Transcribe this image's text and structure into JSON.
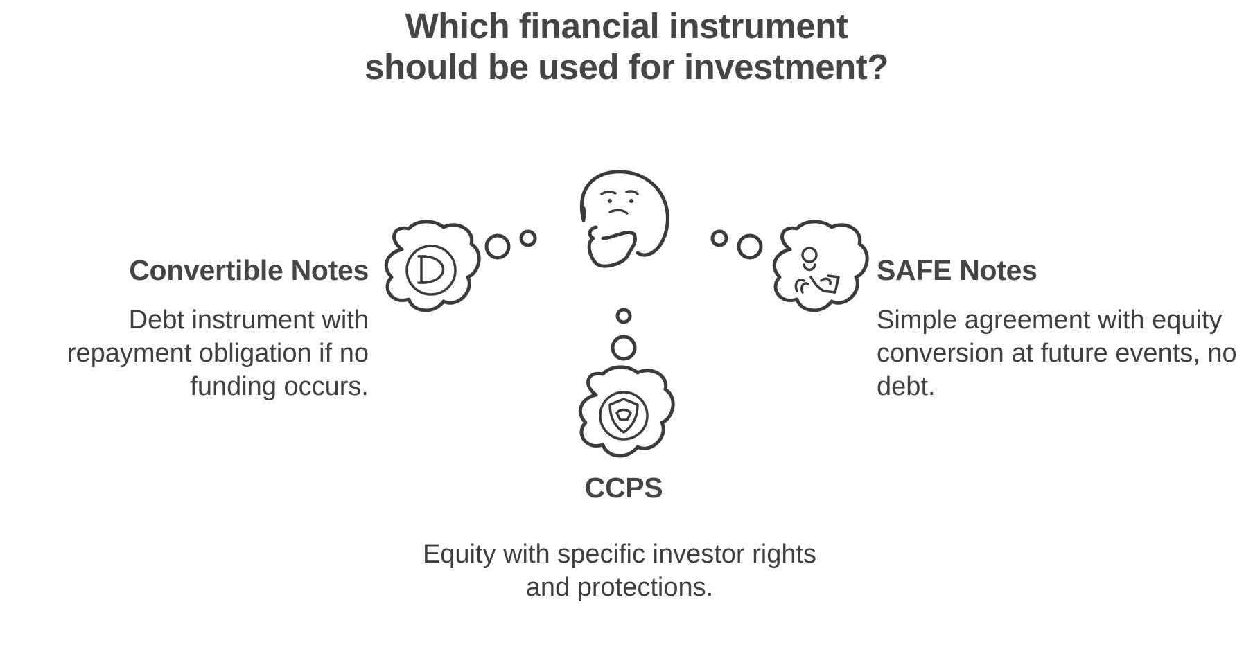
{
  "title": "Which financial instrument should be used for investment?",
  "options": {
    "convertible_notes": {
      "title": "Convertible Notes",
      "description": "Debt instrument with repayment obligation if no funding occurs.",
      "icon": "dollar-coin-icon"
    },
    "safe_notes": {
      "title": "SAFE Notes",
      "description": "Simple agreement with equity conversion at future events, no debt.",
      "icon": "hand-holding-person-icon"
    },
    "ccps": {
      "title": "CCPS",
      "description": "Equity with specific investor rights and protections.",
      "icon": "shield-icon"
    }
  },
  "center_icon": "thinking-face-icon",
  "colors": {
    "text": "#454545",
    "stroke": "#3b3b3b",
    "background": "#ffffff"
  }
}
